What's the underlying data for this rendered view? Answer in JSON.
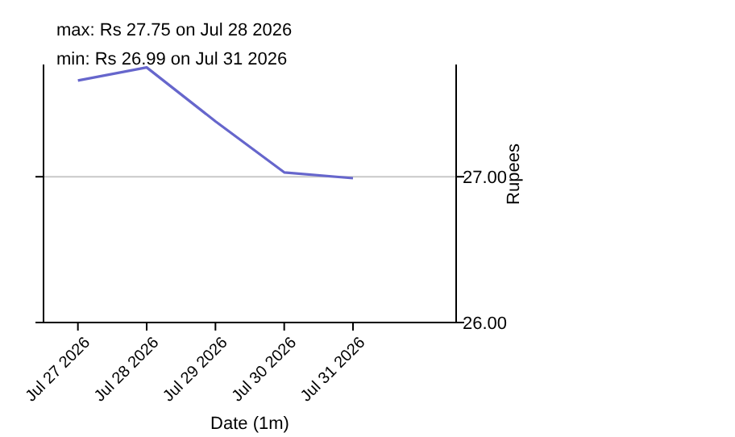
{
  "chart_data": {
    "type": "line",
    "xlabel": "Date (1m)",
    "ylabel": "Rupees",
    "annotations": [
      "max: Rs 27.75 on Jul 28 2026",
      "min: Rs 26.99 on Jul 31 2026"
    ],
    "x": [
      "2026-07-27",
      "2026-07-28",
      "2026-07-29",
      "2026-07-30",
      "2026-07-31"
    ],
    "series": [
      {
        "color": "#6666cc",
        "values": [
          27.66,
          27.75,
          27.38,
          27.03,
          26.99
        ]
      }
    ],
    "xlim": [
      "2026-07-26T12:00",
      "2026-08-01T12:00"
    ],
    "xticks": [
      {
        "value": "2026-07-27",
        "label": "Jul 27 2026"
      },
      {
        "value": "2026-07-28",
        "label": "Jul 28 2026"
      },
      {
        "value": "2026-07-29",
        "label": "Jul 29 2026"
      },
      {
        "value": "2026-07-30",
        "label": "Jul 30 2026"
      },
      {
        "value": "2026-07-31",
        "label": "Jul 31 2026"
      }
    ],
    "ylim": [
      26,
      27.77
    ],
    "yticks": [
      {
        "value": 26,
        "label": "26.00"
      },
      {
        "value": 27,
        "label": "27.00"
      }
    ],
    "grid": "y",
    "marker": "none",
    "line_style": "solid"
  }
}
